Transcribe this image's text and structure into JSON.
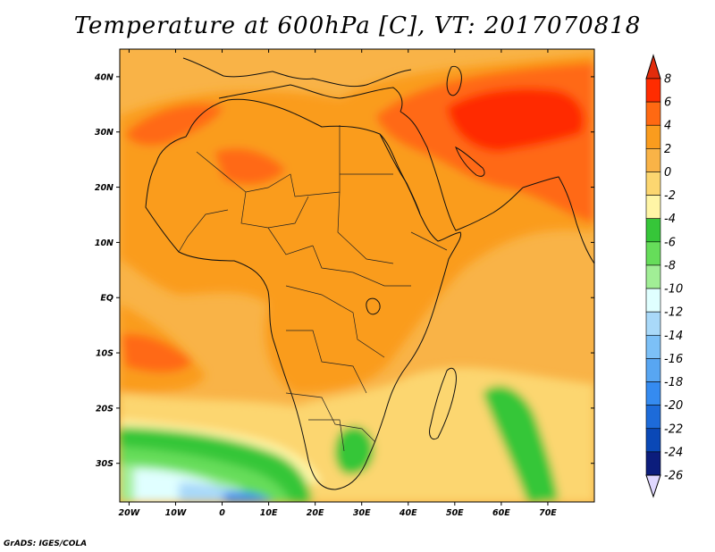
{
  "title": "Temperature at 600hPa [C], VT: 2017070818",
  "credit": "GrADS: IGES/COLA",
  "map": {
    "lon_range": [
      -22,
      80
    ],
    "lat_range": [
      -37,
      45
    ],
    "x_ticks": [
      {
        "lon": -20,
        "label": "20W"
      },
      {
        "lon": -10,
        "label": "10W"
      },
      {
        "lon": 0,
        "label": "0"
      },
      {
        "lon": 10,
        "label": "10E"
      },
      {
        "lon": 20,
        "label": "20E"
      },
      {
        "lon": 30,
        "label": "30E"
      },
      {
        "lon": 40,
        "label": "40E"
      },
      {
        "lon": 50,
        "label": "50E"
      },
      {
        "lon": 60,
        "label": "60E"
      },
      {
        "lon": 70,
        "label": "70E"
      }
    ],
    "y_ticks": [
      {
        "lat": 40,
        "label": "40N"
      },
      {
        "lat": 30,
        "label": "30N"
      },
      {
        "lat": 20,
        "label": "20N"
      },
      {
        "lat": 10,
        "label": "10N"
      },
      {
        "lat": 0,
        "label": "EQ"
      },
      {
        "lat": -10,
        "label": "10S"
      },
      {
        "lat": -20,
        "label": "20S"
      },
      {
        "lat": -30,
        "label": "30S"
      }
    ],
    "background_color": "#f9b347"
  },
  "colorbar": {
    "labels": [
      "8",
      "6",
      "4",
      "2",
      "0",
      "-2",
      "-4",
      "-6",
      "-8",
      "-10",
      "-12",
      "-14",
      "-16",
      "-18",
      "-20",
      "-22",
      "-24",
      "-26"
    ],
    "colors": [
      "#ff2c00",
      "#ff6912",
      "#fa9c1e",
      "#f9b347",
      "#fcd670",
      "#fff5a6",
      "#36c639",
      "#66dd5a",
      "#a1ee96",
      "#e0ffff",
      "#a9d9f9",
      "#7cc0f7",
      "#58a6f2",
      "#358bf0",
      "#1d6bd9",
      "#0a48b6",
      "#0c1d7c"
    ],
    "top_color": "#e22c0c",
    "bottom_color": "#e0d8ff"
  }
}
